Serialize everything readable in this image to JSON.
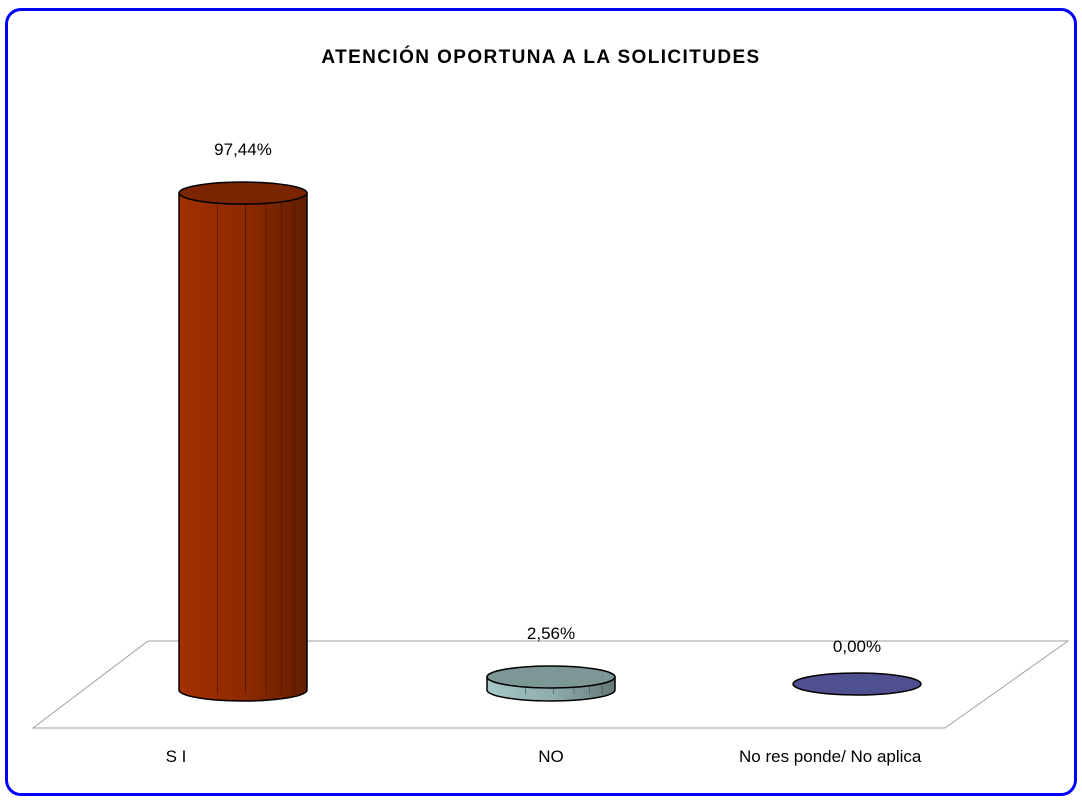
{
  "chart_data": {
    "type": "bar",
    "title": "ATENCIÓN OPORTUNA A LA SOLICITUDES",
    "categories": [
      "S I",
      "NO",
      "No res ponde/ No aplica"
    ],
    "values": [
      97.44,
      2.56,
      0.0
    ],
    "data_labels": [
      "97,44%",
      "2,56%",
      "0,00%"
    ],
    "xlabel": "",
    "ylabel": "",
    "ylim": [
      0,
      100
    ],
    "grid": false,
    "legend": "none",
    "style": "3d-cylinder",
    "colors": [
      "#a33000",
      "#a6c8c8",
      "#6b6bc0"
    ]
  }
}
